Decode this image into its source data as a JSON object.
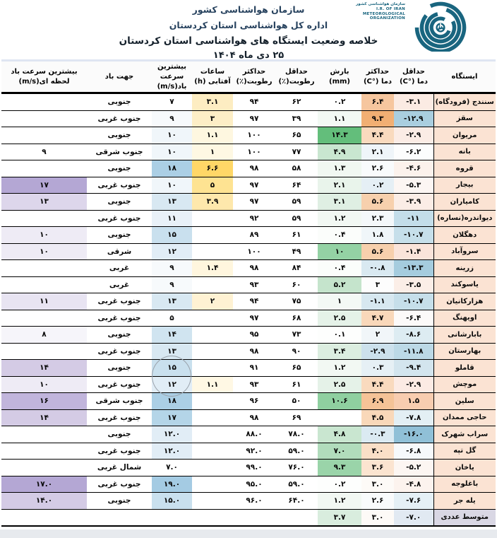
{
  "header": {
    "org_line": "سازمان هواشناسی کشور",
    "office_line": "اداره کل هواشناسی استان کردستان",
    "title_line": "خلاصه وضعیت ایستگاه های هواشناسی استان کردستان",
    "date_line": "۲۵ دی ماه ۱۴۰۴"
  },
  "logo": {
    "fa": "سازمان هواشناسی کشور",
    "en_lines": [
      "I.R. OF IRAN",
      "METEOROLOGICAL",
      "ORGANIZATION"
    ],
    "color": "#19657F"
  },
  "table": {
    "station_bg": "#FBE3D3",
    "avg_station_bg": "#D9D7E4",
    "columns": [
      {
        "id": "station",
        "label": "ایستگاه",
        "numeric": false
      },
      {
        "id": "tmin",
        "label": "حداقل\nدما (°C)",
        "numeric": true
      },
      {
        "id": "tmax",
        "label": "حداکثر\nدما (°C)",
        "numeric": true
      },
      {
        "id": "precip",
        "label": "بارش\n(mm)",
        "numeric": true
      },
      {
        "id": "rhmin",
        "label": "حداقل\nرطوبت(٪)",
        "numeric": true
      },
      {
        "id": "rhmax",
        "label": "حداکثر\nرطوبت(٪)",
        "numeric": true
      },
      {
        "id": "sun",
        "label": "ساعات\nآفتابی (h)",
        "numeric": true
      },
      {
        "id": "wind",
        "label": "بیشترین سرعت\nباد(m/s)",
        "numeric": true
      },
      {
        "id": "dir",
        "label": "جهت باد",
        "numeric": false
      },
      {
        "id": "gust",
        "label": "بیشترین سرعت باد\nلحظه ای(m/s)",
        "numeric": true
      }
    ],
    "rows": [
      {
        "station": "سنندج (فرودگاه)",
        "values": [
          "-۳.۱",
          "۶.۴",
          "۰.۲",
          "۶۲",
          "۹۴",
          "۳.۱",
          "۷",
          "جنوبی",
          ""
        ],
        "bgs": [
          "#FBEBE3",
          "#F6C69E",
          "",
          "",
          "",
          "#FDEDC2",
          "",
          "",
          ""
        ]
      },
      {
        "station": "سقز",
        "values": [
          "-۱۲.۹",
          "۹.۳",
          "۱.۱",
          "۳۹",
          "۹۷",
          "۳",
          "۹",
          "جنوب غربی",
          ""
        ],
        "bgs": [
          "#A9CEDF",
          "#F1AF73",
          "#F3F9F4",
          "",
          "",
          "#FDEEC6",
          "#F7FAFC",
          "",
          ""
        ]
      },
      {
        "station": "مریوان",
        "values": [
          "-۲.۹",
          "۴.۴",
          "۱۴.۳",
          "۶۵",
          "۱۰۰",
          "۱.۱",
          "۱۰",
          "جنوبی",
          ""
        ],
        "bgs": [
          "#FBECE5",
          "#F9DABE",
          "#63BE7B",
          "",
          "",
          "#FEF7E0",
          "#F0F6FA",
          "",
          ""
        ]
      },
      {
        "station": "بانه",
        "values": [
          "-۶.۲",
          "۲.۱",
          "۴.۹",
          "۷۷",
          "۱۰۰",
          "۱",
          "۱۰",
          "جنوب شرقی",
          "۹"
        ],
        "bgs": [
          "#FCFDFD",
          "#EFF5F9",
          "#C9E6D0",
          "",
          "",
          "#FEF8E3",
          "#F0F6FA",
          "",
          ""
        ]
      },
      {
        "station": "قروه",
        "values": [
          "-۴.۶",
          "۲.۶",
          "۱.۳",
          "۵۸",
          "۹۸",
          "۶.۶",
          "۱۸",
          "جنوبی",
          ""
        ],
        "bgs": [
          "#FCF2EC",
          "#F9FBFC",
          "#F1F8F2",
          "",
          "",
          "#FFD767",
          "#ABCFE5",
          "",
          ""
        ]
      },
      {
        "station": "بیجار",
        "values": [
          "-۵.۳",
          "۰.۲",
          "۲.۱",
          "۶۴",
          "۹۷",
          "۵",
          "۱۰",
          "جنوب غربی",
          "۱۷"
        ],
        "bgs": [
          "#FCF6F3",
          "#E5EFF5",
          "#E9F4EB",
          "",
          "",
          "#FEE392",
          "#F0F6FA",
          "",
          "#B4A7D4"
        ]
      },
      {
        "station": "کامیاران",
        "values": [
          "-۳.۹",
          "۵.۶",
          "۳.۱",
          "۵۹",
          "۹۷",
          "۳.۹",
          "۱۳",
          "جنوبی",
          "۱۳"
        ],
        "bgs": [
          "#FBEDE6",
          "#F7D0AD",
          "#DFEFE3",
          "",
          "",
          "#FEE8AC",
          "#D8E8F2",
          "",
          "#DDD6EB"
        ]
      },
      {
        "station": "دیواندره(نساره)",
        "values": [
          "-۱۱",
          "۲.۳",
          "۱.۲",
          "۵۹",
          "۹۲",
          "",
          "۱۱",
          "جنوب غربی",
          ""
        ],
        "bgs": [
          "#C3DDE9",
          "#F4F8FA",
          "#F2F8F3",
          "",
          "",
          "",
          "#E9F1F8",
          "",
          ""
        ]
      },
      {
        "station": "دهگلان",
        "values": [
          "-۱۰.۷",
          "۱.۸",
          "۰.۴",
          "۶۱",
          "۸۹",
          "",
          "۱۵",
          "جنوبی",
          "۱۰"
        ],
        "bgs": [
          "#C6DFEA",
          "#F0F6F9",
          "#FBFDFB",
          "",
          "",
          "",
          "#C9E0EE",
          "",
          "#EEEBF5"
        ]
      },
      {
        "station": "سروآباد",
        "values": [
          "-۱.۴",
          "۵.۶",
          "۱۰",
          "۴۹",
          "۱۰۰",
          "",
          "۱۲",
          "شرقی",
          "۱۰"
        ],
        "bgs": [
          "#FAE4DA",
          "#F7D0AD",
          "#94D2A4",
          "",
          "",
          "",
          "#E1EDF6",
          "",
          "#EEEBF5"
        ]
      },
      {
        "station": "زرینه",
        "values": [
          "-۱۳.۳",
          "-۰.۸",
          "۰.۴",
          "۸۴",
          "۹۸",
          "۱.۴",
          "۹",
          "غربی",
          ""
        ],
        "bgs": [
          "#A5CCDE",
          "#D9E9F1",
          "#FBFDFB",
          "",
          "",
          "#FFF6DE",
          "#F7FAFC",
          "",
          ""
        ]
      },
      {
        "station": "یاسوکند",
        "values": [
          "-۳.۵",
          "۳",
          "۵.۲",
          "۶۰",
          "۹۳",
          "",
          "۹",
          "غربی",
          ""
        ],
        "bgs": [
          "#FBEEE7",
          "#FDFDFD",
          "#C5E4CC",
          "",
          "",
          "",
          "#F7FAFC",
          "",
          ""
        ]
      },
      {
        "station": "هزارکانیان",
        "values": [
          "-۱۰.۷",
          "-۱.۱",
          "۱",
          "۷۵",
          "۹۴",
          "۲",
          "۱۳",
          "جنوب غربی",
          "۱۱"
        ],
        "bgs": [
          "#C6DFEA",
          "#D7E8F0",
          "#F4F9F5",
          "",
          "",
          "#FFF2D3",
          "#D8E8F2",
          "",
          "#E8E4F2"
        ]
      },
      {
        "station": "اویهنگ",
        "values": [
          "-۶.۴",
          "۴.۷",
          "۲.۵",
          "۶۸",
          "۹۷",
          "",
          "۵",
          "جنوب غربی",
          ""
        ],
        "bgs": [
          "#FCFAF9",
          "#F9D8BA",
          "#E5F2E8",
          "",
          "",
          "",
          "",
          "",
          ""
        ]
      },
      {
        "station": "بابارشانی",
        "values": [
          "-۸.۶",
          "۲",
          "۰.۱",
          "۷۳",
          "۹۵",
          "",
          "۱۴",
          "جنوبی",
          "۸"
        ],
        "bgs": [
          "#DDECF2",
          "#F1F6F9",
          "#FDFEFD",
          "",
          "",
          "",
          "#D0E4F0",
          "",
          "#F6F5FA"
        ]
      },
      {
        "station": "بهارستان",
        "values": [
          "-۱۱.۸",
          "-۲.۹",
          "۳.۴",
          "۹۰",
          "۹۸",
          "",
          "۱۳",
          "جنوب غربی",
          ""
        ],
        "bgs": [
          "#BCD9E6",
          "#CCE1EC",
          "#DCEEE0",
          "",
          "",
          "",
          "#D8E8F2",
          "",
          ""
        ]
      },
      {
        "station": "قاملو",
        "values": [
          "-۹.۴",
          "۰.۳",
          "۱.۲",
          "۶۵",
          "۹۱",
          "",
          "۱۵",
          "جنوبی",
          "۱۴"
        ],
        "bgs": [
          "#D3E5EE",
          "#E6F0F5",
          "#F2F8F3",
          "",
          "",
          "",
          "#C9E0EE",
          "",
          "#D4CBE5"
        ]
      },
      {
        "station": "موچش",
        "values": [
          "-۲.۹",
          "۴.۴",
          "۲.۵",
          "۶۱",
          "۹۳",
          "۱.۱",
          "۱۲",
          "جنوب غربی",
          "۱۰"
        ],
        "bgs": [
          "#FCEBE4",
          "#F9DABE",
          "#E5F2E8",
          "",
          "",
          "#FFF8E4",
          "#E1EDF6",
          "",
          "#EEEBF5"
        ]
      },
      {
        "station": "سلین",
        "values": [
          "۱.۵",
          "۶.۹",
          "۱۰.۶",
          "۵۰",
          "۹۶",
          "",
          "۱۸",
          "جنوب شرقی",
          "۱۶"
        ],
        "bgs": [
          "#F8CDB0",
          "#F5C397",
          "#8FD0A0",
          "",
          "",
          "",
          "#ABCFE5",
          "",
          "#C1B5DC"
        ]
      },
      {
        "station": "حاجی ممدان",
        "values": [
          "-۷.۸",
          "۴.۵",
          "",
          "۶۹",
          "۹۸",
          "",
          "۱۷",
          "جنوب غربی",
          "۱۴"
        ],
        "bgs": [
          "#E3EFF4",
          "#F9D8B9",
          "",
          "",
          "",
          "",
          "#B4D5E8",
          "",
          "#D4CBE5"
        ]
      },
      {
        "station": "سراب شهرک",
        "values": [
          "-۱۶.۰",
          "-۰.۳",
          "۴.۸",
          "۷۸.۰",
          "۸۸.۰",
          "",
          "۱۲.۰",
          "جنوبی",
          ""
        ],
        "bgs": [
          "#90C0D7",
          "#DBEAF2",
          "#C9E6D0",
          "",
          "",
          "",
          "#E1EDF6",
          "",
          ""
        ]
      },
      {
        "station": "گل تپه",
        "values": [
          "-۶.۸",
          "۴.۰",
          "۷.۰",
          "۵۹.۰",
          "۹۲.۰",
          "",
          "۱۲.۰",
          "جنوب غربی",
          ""
        ],
        "bgs": [
          "#F6F9FB",
          "#FADFC7",
          "#B1DCBC",
          "",
          "",
          "",
          "#E1EDF6",
          "",
          ""
        ]
      },
      {
        "station": "یاخان",
        "values": [
          "-۵.۲",
          "۳.۶",
          "۹.۳",
          "۷۶.۰",
          "۹۹.۰",
          "",
          "۷.۰",
          "شمال غربی",
          ""
        ],
        "bgs": [
          "#FCF6F2",
          "#FBE4D0",
          "#9AD4A9",
          "",
          "",
          "",
          "",
          "",
          ""
        ]
      },
      {
        "station": "باغلوجه",
        "values": [
          "-۴.۸",
          "۳.۰",
          "۰.۲",
          "۵۹.۰",
          "۹۵.۰",
          "",
          "۱۹.۰",
          "جنوب غربی",
          "۱۷.۰"
        ],
        "bgs": [
          "#FCF3EE",
          "#FDFAF7",
          "#FDFEFD",
          "",
          "",
          "",
          "#A4CBE3",
          "",
          "#B4A7D4"
        ]
      },
      {
        "station": "یله جر",
        "values": [
          "-۷.۶",
          "۲.۶",
          "۱.۲",
          "۶۴.۰",
          "۹۶.۰",
          "",
          "۱۵.۰",
          "جنوبی",
          "۱۴.۰"
        ],
        "bgs": [
          "#E5F0F6",
          "#F9FBFC",
          "#F2F8F3",
          "",
          "",
          "",
          "#C9E0EE",
          "",
          "#D4CBE5"
        ]
      },
      {
        "station": "متوسط عددی",
        "avg": true,
        "values": [
          "-۷.۰",
          "۳.۰",
          "۳.۷",
          "",
          "",
          "",
          "",
          "",
          ""
        ],
        "bgs": [
          "#E1E9F2",
          "#FDFAF7",
          "#D9EDDE",
          "",
          "",
          "",
          "",
          "",
          ""
        ]
      }
    ]
  },
  "annotation": {
    "circle_color": "#9AA2AB"
  },
  "chrome": {
    "bottom_bar_color": "#E7EAEE",
    "top_band_color": "#DFE5F2"
  }
}
